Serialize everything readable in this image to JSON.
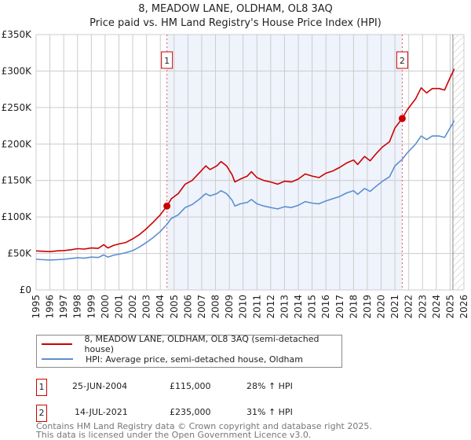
{
  "chart_data": {
    "type": "line",
    "title": "8, MEADOW LANE, OLDHAM, OL8 3AQ",
    "subtitle": "Price paid vs. HM Land Registry's House Price Index (HPI)",
    "xlim": [
      1995,
      2026
    ],
    "ylim": [
      0,
      350000
    ],
    "x_ticks": [
      "1995",
      "1996",
      "1997",
      "1998",
      "1999",
      "2000",
      "2001",
      "2002",
      "2003",
      "2004",
      "2005",
      "2006",
      "2007",
      "2008",
      "2009",
      "2010",
      "2011",
      "2012",
      "2013",
      "2014",
      "2015",
      "2016",
      "2017",
      "2018",
      "2019",
      "2020",
      "2021",
      "2022",
      "2023",
      "2024",
      "2025",
      "2026"
    ],
    "y_ticks": [
      {
        "v": 0,
        "label": "£0"
      },
      {
        "v": 50000,
        "label": "£50K"
      },
      {
        "v": 100000,
        "label": "£100K"
      },
      {
        "v": 150000,
        "label": "£150K"
      },
      {
        "v": 200000,
        "label": "£200K"
      },
      {
        "v": 250000,
        "label": "£250K"
      },
      {
        "v": 300000,
        "label": "£300K"
      },
      {
        "v": 350000,
        "label": "£350K"
      }
    ],
    "grid": true,
    "highlight_range": [
      2004.48,
      2021.53
    ],
    "forecast_hatch_from": 2025.2,
    "series": [
      {
        "name": "8, MEADOW LANE, OLDHAM, OL8 3AQ (semi-detached house)",
        "color": "#cc0000",
        "points": [
          [
            1995,
            53500
          ],
          [
            1995.5,
            53000
          ],
          [
            1996,
            52500
          ],
          [
            1996.5,
            53500
          ],
          [
            1997,
            54000
          ],
          [
            1997.5,
            55000
          ],
          [
            1998,
            56500
          ],
          [
            1998.5,
            56000
          ],
          [
            1999,
            57500
          ],
          [
            1999.5,
            57000
          ],
          [
            1999.9,
            62000
          ],
          [
            2000.2,
            57500
          ],
          [
            2000.6,
            61000
          ],
          [
            2001,
            63000
          ],
          [
            2001.5,
            65000
          ],
          [
            2002,
            70000
          ],
          [
            2002.5,
            76000
          ],
          [
            2003,
            84000
          ],
          [
            2003.5,
            93000
          ],
          [
            2004,
            103000
          ],
          [
            2004.48,
            115000
          ],
          [
            2004.8,
            125000
          ],
          [
            2005.3,
            132000
          ],
          [
            2005.8,
            145000
          ],
          [
            2006.3,
            150000
          ],
          [
            2006.8,
            160000
          ],
          [
            2007.3,
            170000
          ],
          [
            2007.6,
            165000
          ],
          [
            2008.1,
            170000
          ],
          [
            2008.4,
            176000
          ],
          [
            2008.8,
            170000
          ],
          [
            2009.2,
            158000
          ],
          [
            2009.4,
            148000
          ],
          [
            2009.8,
            152000
          ],
          [
            2010.3,
            156000
          ],
          [
            2010.6,
            162000
          ],
          [
            2011,
            154000
          ],
          [
            2011.5,
            150000
          ],
          [
            2012,
            148000
          ],
          [
            2012.5,
            145000
          ],
          [
            2013,
            149000
          ],
          [
            2013.5,
            148000
          ],
          [
            2014,
            152000
          ],
          [
            2014.5,
            159000
          ],
          [
            2015,
            156000
          ],
          [
            2015.5,
            154000
          ],
          [
            2016,
            160000
          ],
          [
            2016.5,
            163000
          ],
          [
            2017,
            168000
          ],
          [
            2017.5,
            174000
          ],
          [
            2018,
            178000
          ],
          [
            2018.3,
            172000
          ],
          [
            2018.8,
            183000
          ],
          [
            2019.2,
            177000
          ],
          [
            2019.7,
            188000
          ],
          [
            2020.1,
            196000
          ],
          [
            2020.6,
            203000
          ],
          [
            2021,
            222000
          ],
          [
            2021.53,
            235000
          ],
          [
            2021.9,
            247000
          ],
          [
            2022.5,
            262000
          ],
          [
            2022.9,
            277000
          ],
          [
            2023.3,
            270000
          ],
          [
            2023.7,
            276000
          ],
          [
            2024.2,
            276000
          ],
          [
            2024.6,
            274000
          ],
          [
            2024.9,
            287000
          ],
          [
            2025.3,
            303000
          ]
        ]
      },
      {
        "name": "HPI: Average price, semi-detached house, Oldham",
        "color": "#5b8fd0",
        "points": [
          [
            1995,
            42000
          ],
          [
            1995.5,
            41500
          ],
          [
            1996,
            41000
          ],
          [
            1996.5,
            41500
          ],
          [
            1997,
            42000
          ],
          [
            1997.5,
            43000
          ],
          [
            1998,
            44000
          ],
          [
            1998.5,
            43500
          ],
          [
            1999,
            45000
          ],
          [
            1999.5,
            44500
          ],
          [
            1999.9,
            48000
          ],
          [
            2000.2,
            45000
          ],
          [
            2000.6,
            47500
          ],
          [
            2001,
            49000
          ],
          [
            2001.5,
            51000
          ],
          [
            2002,
            54000
          ],
          [
            2002.5,
            59000
          ],
          [
            2003,
            65000
          ],
          [
            2003.5,
            72000
          ],
          [
            2004,
            80000
          ],
          [
            2004.48,
            90000
          ],
          [
            2004.8,
            98000
          ],
          [
            2005.3,
            103000
          ],
          [
            2005.8,
            113000
          ],
          [
            2006.3,
            117000
          ],
          [
            2006.8,
            124000
          ],
          [
            2007.3,
            132000
          ],
          [
            2007.6,
            129000
          ],
          [
            2008.1,
            132000
          ],
          [
            2008.4,
            136000
          ],
          [
            2008.8,
            132000
          ],
          [
            2009.2,
            123000
          ],
          [
            2009.4,
            115000
          ],
          [
            2009.8,
            118000
          ],
          [
            2010.3,
            120000
          ],
          [
            2010.6,
            124000
          ],
          [
            2011,
            118000
          ],
          [
            2011.5,
            115000
          ],
          [
            2012,
            113000
          ],
          [
            2012.5,
            111000
          ],
          [
            2013,
            114000
          ],
          [
            2013.5,
            113000
          ],
          [
            2014,
            116000
          ],
          [
            2014.5,
            121000
          ],
          [
            2015,
            119000
          ],
          [
            2015.5,
            118000
          ],
          [
            2016,
            122000
          ],
          [
            2016.5,
            125000
          ],
          [
            2017,
            128000
          ],
          [
            2017.5,
            133000
          ],
          [
            2018,
            136000
          ],
          [
            2018.3,
            131000
          ],
          [
            2018.8,
            139000
          ],
          [
            2019.2,
            135000
          ],
          [
            2019.7,
            143000
          ],
          [
            2020.1,
            149000
          ],
          [
            2020.6,
            155000
          ],
          [
            2021,
            170000
          ],
          [
            2021.53,
            179000
          ],
          [
            2021.9,
            188000
          ],
          [
            2022.5,
            200000
          ],
          [
            2022.9,
            211000
          ],
          [
            2023.3,
            206000
          ],
          [
            2023.7,
            211000
          ],
          [
            2024.2,
            211000
          ],
          [
            2024.6,
            209000
          ],
          [
            2024.9,
            219000
          ],
          [
            2025.3,
            232000
          ]
        ]
      }
    ],
    "sales": [
      {
        "label": "1",
        "x": 2004.48,
        "y": 115000
      },
      {
        "label": "2",
        "x": 2021.53,
        "y": 235000
      }
    ]
  },
  "legend": {
    "property": "8, MEADOW LANE, OLDHAM, OL8 3AQ (semi-detached house)",
    "hpi": "HPI: Average price, semi-detached house, Oldham"
  },
  "transactions": [
    {
      "num": "1",
      "date": "25-JUN-2004",
      "price": "£115,000",
      "hpi": "28% ↑ HPI"
    },
    {
      "num": "2",
      "date": "14-JUL-2021",
      "price": "£235,000",
      "hpi": "31% ↑ HPI"
    }
  ],
  "footer": {
    "line1": "Contains HM Land Registry data © Crown copyright and database right 2025.",
    "line2": "This data is licensed under the Open Government Licence v3.0."
  }
}
